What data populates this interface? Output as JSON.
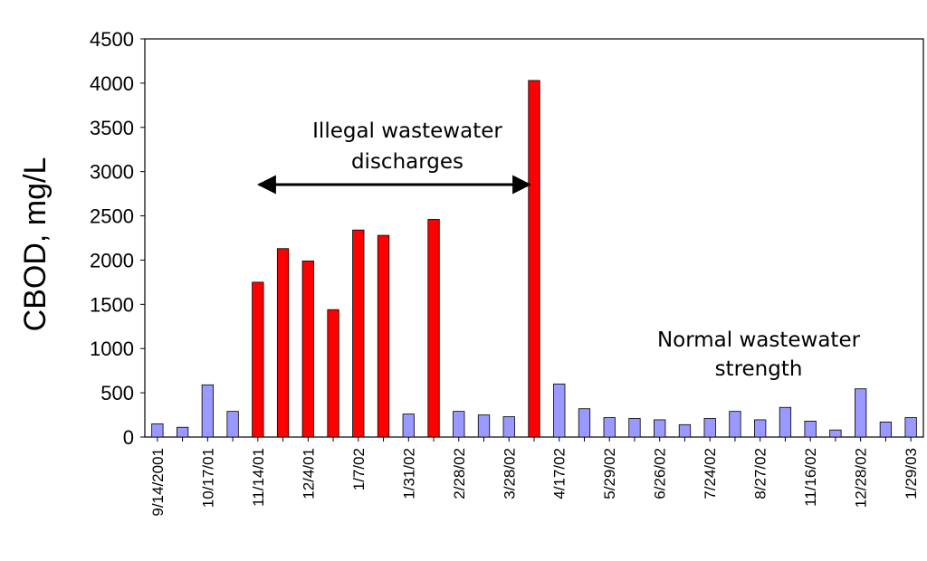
{
  "chart_data": {
    "type": "bar",
    "ylabel": "CBOD, mg/L",
    "xlabel": "",
    "ylim": [
      0,
      4500
    ],
    "yticks": [
      0,
      500,
      1000,
      1500,
      2000,
      2500,
      3000,
      3500,
      4000,
      4500
    ],
    "categories": [
      "9/14/2001",
      "",
      "10/17/01",
      "",
      "11/14/01",
      "",
      "12/4/01",
      "",
      "1/7/02",
      "",
      "1/31/02",
      "",
      "2/28/02",
      "",
      "3/28/02",
      "",
      "4/17/02",
      "",
      "5/29/02",
      "",
      "6/26/02",
      "",
      "7/24/02",
      "",
      "8/27/02",
      "",
      "11/16/02",
      "",
      "12/28/02",
      "",
      "1/29/03"
    ],
    "values": [
      150,
      110,
      590,
      290,
      1750,
      2130,
      1990,
      1440,
      2340,
      2280,
      260,
      2460,
      290,
      250,
      230,
      4030,
      600,
      320,
      220,
      210,
      195,
      140,
      210,
      290,
      195,
      335,
      180,
      80,
      545,
      170,
      220
    ],
    "illegal": [
      false,
      false,
      false,
      false,
      true,
      true,
      true,
      true,
      true,
      true,
      false,
      true,
      false,
      false,
      false,
      true,
      false,
      false,
      false,
      false,
      false,
      false,
      false,
      false,
      false,
      false,
      false,
      false,
      false,
      false,
      false
    ],
    "colors": {
      "normal": "#9999ff",
      "illegal": "#ff0000",
      "edge": "#000000"
    },
    "grid": false,
    "legend": "none",
    "annotations": [
      {
        "lines": [
          "Illegal wastewater",
          "discharges"
        ],
        "arrow": "double-headed horizontal"
      },
      {
        "lines": [
          "Normal wastewater",
          "strength"
        ]
      }
    ]
  }
}
